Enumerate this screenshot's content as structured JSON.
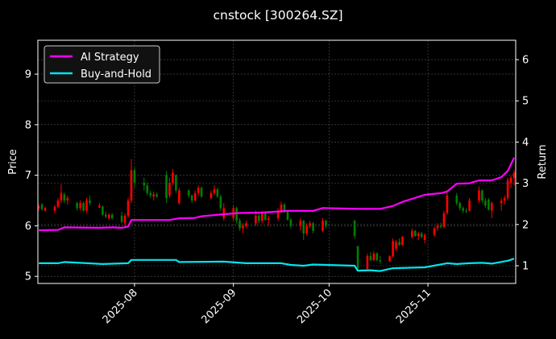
{
  "chart_data": {
    "type": "candlestick+line",
    "title": "cnstock [300264.SZ]",
    "xlabel": "",
    "ylabel_left": "Price",
    "ylabel_right": "Return",
    "xlim": [
      "2025-07-01T17:00:00Z",
      "2025-11-28T12:00:00Z"
    ],
    "ylim_left": [
      4.86,
      9.67
    ],
    "ylim_right": [
      0.57,
      6.47
    ],
    "x_ticks": [
      "2025-08",
      "2025-09",
      "2025-10",
      "2025-11"
    ],
    "y_ticks_left": [
      5,
      6,
      7,
      8,
      9
    ],
    "y_ticks_right": [
      1,
      2,
      3,
      4,
      5,
      6
    ],
    "grid": true,
    "legend_position": "top-left",
    "colors": {
      "up": "#ff0000",
      "down": "#008000",
      "strategy": "#ff00ff",
      "buy_hold": "#00e5ee",
      "background": "#000000",
      "grid": "#555555"
    },
    "candles": {
      "columns": [
        "date",
        "open",
        "high",
        "low",
        "close"
      ],
      "rows": [
        [
          "2025-07-02",
          6.35,
          6.42,
          6.3,
          6.38
        ],
        [
          "2025-07-03",
          6.42,
          6.45,
          6.3,
          6.33
        ],
        [
          "2025-07-04",
          6.3,
          6.38,
          6.28,
          6.35
        ],
        [
          "2025-07-07",
          6.3,
          6.4,
          6.25,
          6.38
        ],
        [
          "2025-07-08",
          6.38,
          6.55,
          6.35,
          6.5
        ],
        [
          "2025-07-09",
          6.5,
          6.82,
          6.45,
          6.65
        ],
        [
          "2025-07-10",
          6.62,
          6.66,
          6.45,
          6.5
        ],
        [
          "2025-07-11",
          6.5,
          6.6,
          6.42,
          6.55
        ],
        [
          "2025-07-14",
          6.45,
          6.48,
          6.3,
          6.35
        ],
        [
          "2025-07-15",
          6.35,
          6.5,
          6.3,
          6.45
        ],
        [
          "2025-07-16",
          6.45,
          6.48,
          6.28,
          6.3
        ],
        [
          "2025-07-17",
          6.3,
          6.55,
          6.25,
          6.5
        ],
        [
          "2025-07-18",
          6.5,
          6.6,
          6.4,
          6.45
        ],
        [
          "2025-07-21",
          6.36,
          6.45,
          6.35,
          6.4
        ],
        [
          "2025-07-22",
          6.38,
          6.4,
          6.2,
          6.22
        ],
        [
          "2025-07-23",
          6.22,
          6.28,
          6.15,
          6.18
        ],
        [
          "2025-07-24",
          6.15,
          6.25,
          6.12,
          6.22
        ],
        [
          "2025-07-25",
          6.22,
          6.25,
          6.12,
          6.15
        ],
        [
          "2025-07-28",
          6.2,
          6.28,
          6.05,
          6.08
        ],
        [
          "2025-07-29",
          6.05,
          6.25,
          5.98,
          6.2
        ],
        [
          "2025-07-30",
          6.2,
          6.55,
          6.15,
          6.5
        ],
        [
          "2025-07-31",
          6.5,
          7.32,
          6.45,
          7.1
        ],
        [
          "2025-08-01",
          7.1,
          7.15,
          6.75,
          6.85
        ],
        [
          "2025-08-04",
          6.85,
          6.95,
          6.7,
          6.8
        ],
        [
          "2025-08-05",
          6.8,
          6.85,
          6.6,
          6.65
        ],
        [
          "2025-08-06",
          6.65,
          6.7,
          6.55,
          6.6
        ],
        [
          "2025-08-07",
          6.58,
          6.68,
          6.5,
          6.62
        ],
        [
          "2025-08-08",
          6.62,
          6.66,
          6.55,
          6.58
        ],
        [
          "2025-08-11",
          7.0,
          7.08,
          6.45,
          6.55
        ],
        [
          "2025-08-12",
          6.6,
          6.95,
          6.55,
          6.85
        ],
        [
          "2025-08-13",
          6.85,
          7.12,
          6.8,
          7.05
        ],
        [
          "2025-08-14",
          7.0,
          7.02,
          6.65,
          6.7
        ],
        [
          "2025-08-15",
          6.45,
          6.75,
          6.42,
          6.7
        ],
        [
          "2025-08-18",
          6.7,
          6.72,
          6.55,
          6.6
        ],
        [
          "2025-08-19",
          6.6,
          6.62,
          6.45,
          6.5
        ],
        [
          "2025-08-20",
          6.5,
          6.7,
          6.48,
          6.65
        ],
        [
          "2025-08-21",
          6.65,
          6.8,
          6.6,
          6.75
        ],
        [
          "2025-08-22",
          6.75,
          6.78,
          6.55,
          6.58
        ],
        [
          "2025-08-25",
          6.55,
          6.7,
          6.52,
          6.65
        ],
        [
          "2025-08-26",
          6.65,
          6.8,
          6.6,
          6.72
        ],
        [
          "2025-08-27",
          6.72,
          6.75,
          6.55,
          6.58
        ],
        [
          "2025-08-28",
          6.58,
          6.62,
          6.3,
          6.35
        ],
        [
          "2025-08-29",
          6.15,
          6.45,
          6.1,
          6.35
        ],
        [
          "2025-09-01",
          6.15,
          6.4,
          6.1,
          6.35
        ],
        [
          "2025-09-02",
          6.35,
          6.38,
          6.05,
          6.1
        ],
        [
          "2025-09-03",
          6.1,
          6.15,
          5.9,
          5.95
        ],
        [
          "2025-09-04",
          5.95,
          6.05,
          5.85,
          6.0
        ],
        [
          "2025-09-05",
          6.0,
          6.1,
          5.95,
          6.05
        ],
        [
          "2025-09-08",
          6.05,
          6.3,
          6.0,
          6.2
        ],
        [
          "2025-09-09",
          6.2,
          6.25,
          6.05,
          6.1
        ],
        [
          "2025-09-10",
          6.1,
          6.3,
          6.05,
          6.25
        ],
        [
          "2025-09-11",
          6.25,
          6.28,
          6.1,
          6.12
        ],
        [
          "2025-09-12",
          6.12,
          6.2,
          6.0,
          6.15
        ],
        [
          "2025-09-15",
          6.15,
          6.35,
          6.1,
          6.3
        ],
        [
          "2025-09-16",
          6.3,
          6.48,
          6.25,
          6.42
        ],
        [
          "2025-09-17",
          6.42,
          6.45,
          6.25,
          6.28
        ],
        [
          "2025-09-18",
          6.28,
          6.32,
          6.1,
          6.12
        ],
        [
          "2025-09-19",
          6.12,
          6.15,
          5.95,
          6.0
        ],
        [
          "2025-09-22",
          6.0,
          6.15,
          5.9,
          6.1
        ],
        [
          "2025-09-23",
          6.1,
          6.12,
          5.72,
          5.85
        ],
        [
          "2025-09-24",
          5.85,
          6.05,
          5.8,
          6.0
        ],
        [
          "2025-09-25",
          6.0,
          6.1,
          5.95,
          6.05
        ],
        [
          "2025-09-26",
          6.05,
          6.08,
          5.85,
          5.9
        ],
        [
          "2025-09-29",
          5.9,
          6.15,
          5.88,
          6.1
        ],
        [
          "2025-09-30",
          6.1,
          6.12,
          5.95,
          6.0
        ],
        [
          "2025-10-09",
          6.1,
          6.12,
          5.75,
          5.8
        ],
        [
          "2025-10-10",
          5.6,
          5.6,
          5.12,
          5.15
        ],
        [
          "2025-10-13",
          5.15,
          5.45,
          5.12,
          5.4
        ],
        [
          "2025-10-14",
          5.4,
          5.48,
          5.3,
          5.32
        ],
        [
          "2025-10-15",
          5.32,
          5.5,
          5.3,
          5.45
        ],
        [
          "2025-10-16",
          5.45,
          5.48,
          5.3,
          5.32
        ],
        [
          "2025-10-17",
          5.32,
          5.4,
          5.25,
          5.3
        ],
        [
          "2025-10-20",
          5.3,
          5.42,
          5.28,
          5.4
        ],
        [
          "2025-10-21",
          5.4,
          5.75,
          5.38,
          5.7
        ],
        [
          "2025-10-22",
          5.55,
          5.72,
          5.5,
          5.68
        ],
        [
          "2025-10-23",
          5.68,
          5.75,
          5.6,
          5.62
        ],
        [
          "2025-10-24",
          5.62,
          5.8,
          5.6,
          5.78
        ],
        [
          "2025-10-27",
          5.78,
          5.95,
          5.75,
          5.9
        ],
        [
          "2025-10-28",
          5.9,
          5.92,
          5.78,
          5.8
        ],
        [
          "2025-10-29",
          5.8,
          5.88,
          5.72,
          5.85
        ],
        [
          "2025-10-30",
          5.85,
          5.88,
          5.75,
          5.78
        ],
        [
          "2025-10-31",
          5.72,
          5.85,
          5.65,
          5.82
        ],
        [
          "2025-11-03",
          5.82,
          5.98,
          5.78,
          5.95
        ],
        [
          "2025-11-04",
          5.95,
          6.05,
          5.9,
          6.0
        ],
        [
          "2025-11-05",
          6.0,
          6.06,
          5.95,
          5.98
        ],
        [
          "2025-11-06",
          5.98,
          6.3,
          5.95,
          6.25
        ],
        [
          "2025-11-07",
          6.25,
          6.7,
          6.22,
          6.6
        ],
        [
          "2025-11-10",
          6.6,
          6.65,
          6.4,
          6.45
        ],
        [
          "2025-11-11",
          6.45,
          6.48,
          6.3,
          6.35
        ],
        [
          "2025-11-12",
          6.35,
          6.38,
          6.25,
          6.3
        ],
        [
          "2025-11-13",
          6.3,
          6.35,
          6.25,
          6.28
        ],
        [
          "2025-11-14",
          6.3,
          6.55,
          6.28,
          6.5
        ],
        [
          "2025-11-17",
          6.5,
          6.78,
          6.45,
          6.7
        ],
        [
          "2025-11-18",
          6.7,
          6.72,
          6.45,
          6.5
        ],
        [
          "2025-11-19",
          6.5,
          6.55,
          6.35,
          6.4
        ],
        [
          "2025-11-20",
          6.52,
          6.55,
          6.3,
          6.32
        ],
        [
          "2025-11-21",
          6.3,
          6.48,
          6.15,
          6.45
        ],
        [
          "2025-11-24",
          6.45,
          6.55,
          6.3,
          6.5
        ],
        [
          "2025-11-25",
          6.5,
          6.6,
          6.42,
          6.55
        ],
        [
          "2025-11-26",
          6.55,
          6.95,
          6.5,
          6.9
        ],
        [
          "2025-11-27",
          6.85,
          7.0,
          6.75,
          6.95
        ],
        [
          "2025-11-28",
          6.95,
          7.1,
          6.8,
          7.05
        ]
      ]
    },
    "series": [
      {
        "name": "AI Strategy",
        "axis": "right",
        "x": [
          "2025-07-02",
          "2025-07-08",
          "2025-07-10",
          "2025-07-21",
          "2025-07-25",
          "2025-07-28",
          "2025-07-30",
          "2025-07-31",
          "2025-08-08",
          "2025-08-12",
          "2025-08-15",
          "2025-08-20",
          "2025-08-22",
          "2025-08-29",
          "2025-09-03",
          "2025-09-10",
          "2025-09-18",
          "2025-09-26",
          "2025-09-29",
          "2025-10-10",
          "2025-10-17",
          "2025-10-21",
          "2025-10-24",
          "2025-10-31",
          "2025-11-05",
          "2025-11-07",
          "2025-11-10",
          "2025-11-14",
          "2025-11-17",
          "2025-11-21",
          "2025-11-24",
          "2025-11-26",
          "2025-11-28"
        ],
        "values": [
          1.86,
          1.87,
          1.93,
          1.92,
          1.93,
          1.92,
          1.95,
          2.11,
          2.11,
          2.11,
          2.15,
          2.16,
          2.2,
          2.25,
          2.28,
          2.29,
          2.33,
          2.33,
          2.4,
          2.38,
          2.38,
          2.45,
          2.55,
          2.72,
          2.76,
          2.8,
          2.99,
          3.0,
          3.07,
          3.07,
          3.15,
          3.3,
          3.62
        ]
      },
      {
        "name": "Buy-and-Hold",
        "axis": "right",
        "x": [
          "2025-07-02",
          "2025-07-08",
          "2025-07-10",
          "2025-07-22",
          "2025-07-30",
          "2025-07-31",
          "2025-08-14",
          "2025-08-15",
          "2025-08-29",
          "2025-09-05",
          "2025-09-16",
          "2025-09-19",
          "2025-09-23",
          "2025-09-26",
          "2025-09-30",
          "2025-10-09",
          "2025-10-10",
          "2025-10-14",
          "2025-10-17",
          "2025-10-21",
          "2025-10-31",
          "2025-11-07",
          "2025-11-10",
          "2025-11-14",
          "2025-11-18",
          "2025-11-21",
          "2025-11-26",
          "2025-11-28"
        ],
        "values": [
          1.06,
          1.06,
          1.09,
          1.04,
          1.06,
          1.14,
          1.14,
          1.09,
          1.1,
          1.06,
          1.06,
          1.02,
          1.0,
          1.03,
          1.02,
          1.0,
          0.88,
          0.89,
          0.87,
          0.94,
          0.96,
          1.06,
          1.04,
          1.06,
          1.07,
          1.05,
          1.12,
          1.17
        ]
      }
    ]
  }
}
